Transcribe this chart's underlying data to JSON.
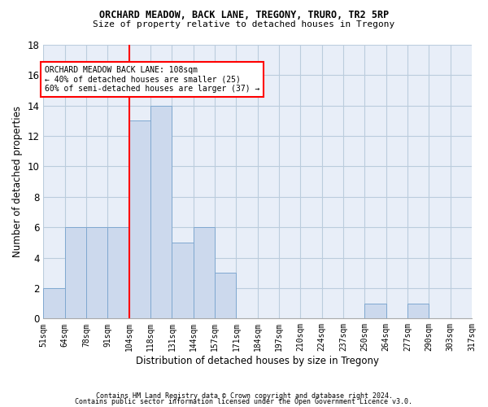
{
  "title": "ORCHARD MEADOW, BACK LANE, TREGONY, TRURO, TR2 5RP",
  "subtitle": "Size of property relative to detached houses in Tregony",
  "xlabel": "Distribution of detached houses by size in Tregony",
  "ylabel": "Number of detached properties",
  "bar_color": "#ccd9ed",
  "bar_edge_color": "#7fa8d0",
  "grid_color": "#bbccdd",
  "bg_color": "#e8eef8",
  "red_line_index": 4,
  "annotation_line1": "ORCHARD MEADOW BACK LANE: 108sqm",
  "annotation_line2": "← 40% of detached houses are smaller (25)",
  "annotation_line3": "60% of semi-detached houses are larger (37) →",
  "footnote1": "Contains HM Land Registry data © Crown copyright and database right 2024.",
  "footnote2": "Contains public sector information licensed under the Open Government Licence v3.0.",
  "counts": [
    2,
    6,
    6,
    6,
    13,
    14,
    5,
    6,
    3,
    0,
    0,
    0,
    0,
    0,
    0,
    1,
    0,
    1,
    0,
    0
  ],
  "tick_labels": [
    "51sqm",
    "64sqm",
    "78sqm",
    "91sqm",
    "104sqm",
    "118sqm",
    "131sqm",
    "144sqm",
    "157sqm",
    "171sqm",
    "184sqm",
    "197sqm",
    "210sqm",
    "224sqm",
    "237sqm",
    "250sqm",
    "264sqm",
    "277sqm",
    "290sqm",
    "303sqm",
    "317sqm"
  ],
  "ylim": [
    0,
    18
  ],
  "yticks": [
    0,
    2,
    4,
    6,
    8,
    10,
    12,
    14,
    16,
    18
  ]
}
